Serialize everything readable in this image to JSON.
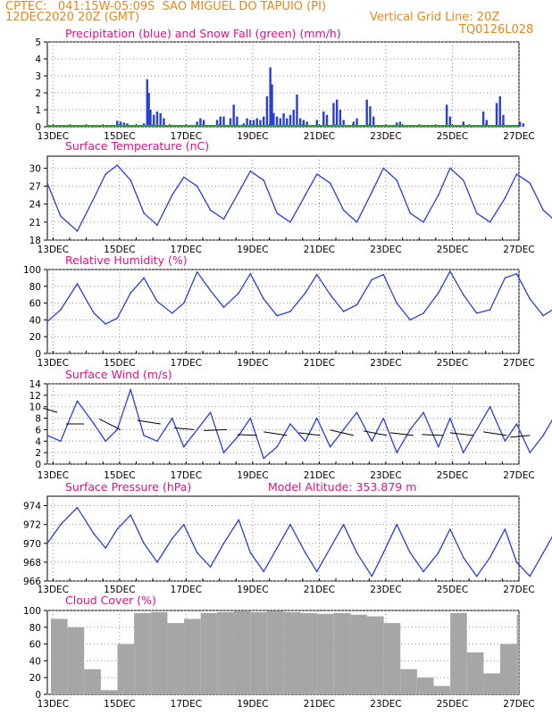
{
  "header": {
    "line1": "CPTEC:   041:15W-05:09S  SAO MIGUEL DO TAPUIO (PI)",
    "line2_left": "12DEC2020 20Z (GMT)",
    "line2_right": "Vertical Grid Line: 20Z",
    "line3_right": "TQ0126L028"
  },
  "x_ticks": [
    "13DEC",
    "15DEC",
    "17DEC",
    "19DEC",
    "21DEC",
    "23DEC",
    "25DEC",
    "27DEC"
  ],
  "colors": {
    "title": "#e0108a",
    "header": "#e8861c",
    "line": "#2a3fd6",
    "snow": "#1ea81e",
    "cloud": "#a6a6a6",
    "grid": "#8c8c8c"
  },
  "chart_data": [
    {
      "type": "bar",
      "title": "Precipitation (blue) and Snow Fall (green) (mm/h)",
      "ylim": [
        0,
        5
      ],
      "yticks": [
        0,
        1,
        2,
        3,
        4,
        5
      ],
      "x_start": "2020-12-12T20Z",
      "x_end": "2020-12-27T00Z",
      "series": [
        {
          "name": "Precipitation",
          "color": "#2a3fd6",
          "points": [
            [
              2.1,
              0.35
            ],
            [
              2.2,
              0.3
            ],
            [
              2.3,
              0.25
            ],
            [
              2.4,
              0.2
            ],
            [
              2.9,
              0.2
            ],
            [
              3.0,
              2.8
            ],
            [
              3.05,
              2.0
            ],
            [
              3.1,
              1.0
            ],
            [
              3.2,
              0.7
            ],
            [
              3.3,
              0.9
            ],
            [
              3.4,
              0.8
            ],
            [
              3.5,
              0.5
            ],
            [
              4.5,
              0.3
            ],
            [
              4.6,
              0.5
            ],
            [
              4.7,
              0.4
            ],
            [
              5.1,
              0.4
            ],
            [
              5.2,
              0.6
            ],
            [
              5.3,
              0.6
            ],
            [
              5.5,
              0.5
            ],
            [
              5.6,
              1.3
            ],
            [
              5.7,
              0.6
            ],
            [
              5.9,
              0.2
            ],
            [
              6.0,
              0.5
            ],
            [
              6.1,
              0.4
            ],
            [
              6.2,
              0.4
            ],
            [
              6.3,
              0.5
            ],
            [
              6.4,
              0.4
            ],
            [
              6.5,
              0.6
            ],
            [
              6.6,
              1.8
            ],
            [
              6.7,
              3.5
            ],
            [
              6.75,
              2.5
            ],
            [
              6.8,
              0.8
            ],
            [
              6.9,
              0.6
            ],
            [
              7.0,
              0.5
            ],
            [
              7.1,
              0.8
            ],
            [
              7.2,
              0.5
            ],
            [
              7.3,
              0.7
            ],
            [
              7.4,
              1.0
            ],
            [
              7.5,
              1.9
            ],
            [
              7.6,
              0.5
            ],
            [
              7.7,
              0.4
            ],
            [
              7.8,
              0.3
            ],
            [
              8.1,
              0.4
            ],
            [
              8.3,
              0.9
            ],
            [
              8.4,
              0.7
            ],
            [
              8.6,
              1.4
            ],
            [
              8.7,
              1.6
            ],
            [
              8.8,
              1.0
            ],
            [
              8.9,
              0.4
            ],
            [
              9.2,
              0.3
            ],
            [
              9.3,
              0.5
            ],
            [
              9.6,
              1.6
            ],
            [
              9.7,
              1.2
            ],
            [
              9.8,
              0.6
            ],
            [
              10.5,
              0.25
            ],
            [
              10.6,
              0.3
            ],
            [
              12.0,
              1.3
            ],
            [
              12.1,
              0.6
            ],
            [
              12.5,
              0.3
            ],
            [
              13.1,
              0.9
            ],
            [
              13.2,
              0.4
            ],
            [
              13.5,
              1.4
            ],
            [
              13.6,
              1.8
            ],
            [
              13.7,
              0.7
            ],
            [
              14.2,
              0.3
            ],
            [
              14.3,
              0.2
            ],
            [
              15.7,
              0.2
            ],
            [
              15.8,
              0.4
            ],
            [
              15.9,
              0.3
            ],
            [
              16.6,
              0.3
            ],
            [
              16.7,
              1.2
            ]
          ]
        },
        {
          "name": "Snow Fall",
          "color": "#1ea81e",
          "values": "zero"
        }
      ]
    },
    {
      "type": "line",
      "title": "Surface Temperature (nC)",
      "ylim": [
        18,
        32
      ],
      "yticks": [
        18,
        21,
        24,
        27,
        30
      ],
      "series": [
        {
          "name": "Temperature",
          "x": [
            0,
            0.4,
            0.9,
            1.4,
            1.75,
            2.1,
            2.5,
            2.9,
            3.3,
            3.75,
            4.1,
            4.5,
            4.9,
            5.3,
            5.75,
            6.1,
            6.5,
            6.9,
            7.3,
            7.75,
            8.1,
            8.5,
            8.9,
            9.3,
            9.75,
            10.1,
            10.5,
            10.9,
            11.3,
            11.75,
            12.1,
            12.5,
            12.9,
            13.3,
            13.75,
            14.1,
            14.5,
            14.9,
            15.3,
            15.75,
            16.1,
            16.5,
            16.9,
            17.3
          ],
          "y": [
            27.5,
            22,
            19.5,
            25,
            29,
            30.5,
            28,
            22.5,
            20.5,
            25.5,
            28.5,
            27,
            23,
            21.5,
            26,
            29.5,
            28,
            22.5,
            21,
            25.5,
            29,
            27.5,
            23,
            21,
            26,
            30,
            28,
            22.5,
            21,
            25.5,
            30,
            28,
            22.5,
            21,
            25,
            29,
            27.5,
            23,
            21,
            25.5,
            29.5,
            27,
            22.5,
            20.5
          ]
        }
      ]
    },
    {
      "type": "line",
      "title": "Relative Humidity (%)",
      "ylim": [
        0,
        100
      ],
      "yticks": [
        0,
        20,
        40,
        60,
        80,
        100
      ],
      "series": [
        {
          "name": "Humidity",
          "x": [
            0,
            0.4,
            0.9,
            1.4,
            1.75,
            2.1,
            2.5,
            2.9,
            3.3,
            3.75,
            4.1,
            4.5,
            4.9,
            5.3,
            5.75,
            6.1,
            6.5,
            6.9,
            7.3,
            7.75,
            8.1,
            8.5,
            8.9,
            9.3,
            9.75,
            10.1,
            10.5,
            10.9,
            11.3,
            11.75,
            12.1,
            12.5,
            12.9,
            13.3,
            13.75,
            14.1,
            14.5,
            14.9,
            15.3,
            15.75,
            16.1,
            16.5,
            16.9,
            17.3
          ],
          "y": [
            38,
            52,
            83,
            48,
            35,
            42,
            72,
            90,
            62,
            48,
            60,
            97,
            75,
            55,
            72,
            95,
            65,
            45,
            50,
            72,
            94,
            70,
            50,
            58,
            88,
            94,
            60,
            40,
            48,
            72,
            98,
            70,
            48,
            52,
            90,
            95,
            65,
            45,
            55,
            80,
            99,
            60,
            40,
            52
          ]
        }
      ]
    },
    {
      "type": "line",
      "title": "Surface Wind (m/s)",
      "ylim": [
        0,
        14
      ],
      "yticks": [
        0,
        2,
        4,
        6,
        8,
        10,
        12,
        14
      ],
      "series": [
        {
          "name": "Wind speed",
          "x": [
            0,
            0.4,
            0.9,
            1.4,
            1.75,
            2.1,
            2.5,
            2.9,
            3.3,
            3.75,
            4.1,
            4.5,
            4.9,
            5.3,
            5.75,
            6.1,
            6.5,
            6.9,
            7.3,
            7.75,
            8.1,
            8.5,
            8.9,
            9.3,
            9.75,
            10.1,
            10.5,
            10.9,
            11.3,
            11.75,
            12.1,
            12.5,
            12.9,
            13.3,
            13.75,
            14.1,
            14.5,
            14.9,
            15.3,
            15.75,
            16.1,
            16.5,
            16.9,
            17.3
          ],
          "y": [
            5,
            4,
            11,
            7,
            4,
            6,
            13,
            5,
            4,
            8,
            3,
            6,
            9,
            2,
            5,
            8,
            1,
            3,
            7,
            4,
            8,
            3,
            6,
            9,
            4,
            8,
            2,
            6,
            9,
            3,
            8,
            2,
            6,
            10,
            4,
            7,
            2,
            5,
            9,
            3,
            10,
            6,
            8,
            6
          ]
        }
      ]
    },
    {
      "type": "line",
      "title": "Surface Pressure (hPa)",
      "annotation": "Model Altitude: 353.879 m",
      "ylim": [
        966,
        975
      ],
      "yticks": [
        966,
        968,
        970,
        972,
        974
      ],
      "series": [
        {
          "name": "Pressure",
          "x": [
            0,
            0.4,
            0.9,
            1.4,
            1.75,
            2.1,
            2.5,
            2.9,
            3.3,
            3.75,
            4.1,
            4.5,
            4.9,
            5.3,
            5.75,
            6.1,
            6.5,
            6.9,
            7.3,
            7.75,
            8.1,
            8.5,
            8.9,
            9.3,
            9.75,
            10.1,
            10.5,
            10.9,
            11.3,
            11.75,
            12.1,
            12.5,
            12.9,
            13.3,
            13.75,
            14.1,
            14.5,
            14.9,
            15.3,
            15.75,
            16.1,
            16.5,
            16.9,
            17.3
          ],
          "y": [
            970,
            972,
            973.8,
            971,
            969.5,
            971.5,
            973,
            970,
            968,
            970.5,
            972,
            969,
            967.5,
            970,
            972.5,
            969,
            967,
            969.5,
            972,
            969,
            967,
            969.5,
            972,
            969,
            966.5,
            969,
            972,
            969,
            967,
            969,
            971.5,
            968.5,
            966.5,
            968.5,
            971.5,
            968,
            966.5,
            969,
            971.5,
            968,
            966,
            968,
            971,
            967.5
          ]
        }
      ]
    },
    {
      "type": "bar",
      "title": "Cloud Cover (%)",
      "ylim": [
        0,
        100
      ],
      "yticks": [
        0,
        20,
        40,
        60,
        80,
        100
      ],
      "series": [
        {
          "name": "Cloud cover",
          "color": "#a6a6a6",
          "x": [
            0,
            0.5,
            1,
            1.5,
            2,
            2.5,
            3,
            3.5,
            4,
            4.5,
            5,
            5.5,
            6,
            6.5,
            7,
            7.5,
            8,
            8.5,
            9,
            9.5,
            10,
            10.5,
            11,
            11.5,
            12,
            12.5,
            13,
            13.5,
            14,
            14.5,
            15,
            15.5,
            16,
            16.5,
            17
          ],
          "y": [
            90,
            80,
            30,
            5,
            60,
            97,
            98,
            85,
            90,
            97,
            98,
            99,
            98,
            99,
            98,
            97,
            96,
            97,
            95,
            93,
            85,
            30,
            20,
            10,
            97,
            50,
            25,
            60,
            95,
            97,
            98,
            96,
            94,
            95,
            96
          ]
        }
      ]
    }
  ]
}
